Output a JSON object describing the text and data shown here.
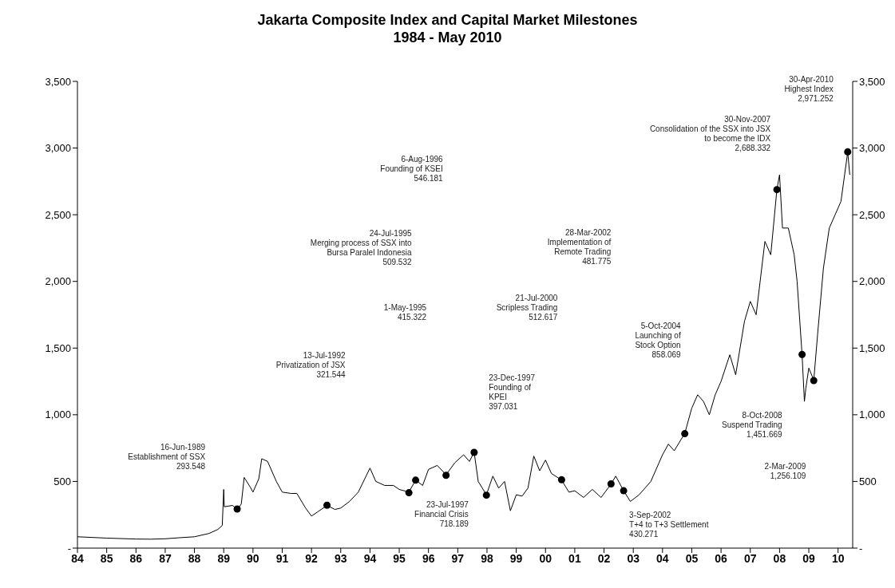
{
  "chart_data": {
    "type": "line",
    "title": "Jakarta Composite Index and Capital Market Milestones",
    "subtitle": "1984 - May 2010",
    "xlim": [
      1984,
      2010.5
    ],
    "xticks": [
      {
        "value": 1984,
        "label": "84"
      },
      {
        "value": 1985,
        "label": "85"
      },
      {
        "value": 1986,
        "label": "86"
      },
      {
        "value": 1987,
        "label": "87"
      },
      {
        "value": 1988,
        "label": "88"
      },
      {
        "value": 1989,
        "label": "89"
      },
      {
        "value": 1990,
        "label": "90"
      },
      {
        "value": 1991,
        "label": "91"
      },
      {
        "value": 1992,
        "label": "92"
      },
      {
        "value": 1993,
        "label": "93"
      },
      {
        "value": 1994,
        "label": "94"
      },
      {
        "value": 1995,
        "label": "95"
      },
      {
        "value": 1996,
        "label": "96"
      },
      {
        "value": 1997,
        "label": "97"
      },
      {
        "value": 1998,
        "label": "98"
      },
      {
        "value": 1999,
        "label": "99"
      },
      {
        "value": 2000,
        "label": "00"
      },
      {
        "value": 2001,
        "label": "01"
      },
      {
        "value": 2002,
        "label": "02"
      },
      {
        "value": 2003,
        "label": "03"
      },
      {
        "value": 2004,
        "label": "04"
      },
      {
        "value": 2005,
        "label": "05"
      },
      {
        "value": 2006,
        "label": "06"
      },
      {
        "value": 2007,
        "label": "07"
      },
      {
        "value": 2008,
        "label": "08"
      },
      {
        "value": 2009,
        "label": "09"
      },
      {
        "value": 2010,
        "label": "10"
      }
    ],
    "ylim": [
      0,
      3500
    ],
    "yticks": [
      {
        "value": 0,
        "label": "-"
      },
      {
        "value": 500,
        "label": "500"
      },
      {
        "value": 1000,
        "label": "1,000"
      },
      {
        "value": 1500,
        "label": "1,500"
      },
      {
        "value": 2000,
        "label": "2,000"
      },
      {
        "value": 2500,
        "label": "2,500"
      },
      {
        "value": 3000,
        "label": "3,000"
      },
      {
        "value": 3500,
        "label": "3,500"
      }
    ],
    "y2lim": [
      0,
      3500
    ],
    "y2ticks": [
      {
        "value": 0,
        "label": "-"
      },
      {
        "value": 500,
        "label": "500"
      },
      {
        "value": 1000,
        "label": "1,000"
      },
      {
        "value": 1500,
        "label": "1,500"
      },
      {
        "value": 2000,
        "label": "2,000"
      },
      {
        "value": 2500,
        "label": "2,500"
      },
      {
        "value": 3000,
        "label": "3,000"
      },
      {
        "value": 3500,
        "label": "3,500"
      }
    ],
    "grid": false,
    "series": [
      {
        "color": "#000000",
        "marker": "none",
        "x": [
          1984,
          1985,
          1986,
          1986.5,
          1987,
          1987.5,
          1988,
          1988.5,
          1988.8,
          1988.95,
          1989.0,
          1989.02,
          1989.3,
          1989.46,
          1989.6,
          1989.7,
          1989.9,
          1990.0,
          1990.2,
          1990.3,
          1990.5,
          1990.8,
          1991.0,
          1991.3,
          1991.5,
          1991.8,
          1992.0,
          1992.2,
          1992.53,
          1992.8,
          1993.0,
          1993.3,
          1993.6,
          1994.0,
          1994.2,
          1994.5,
          1994.8,
          1995.0,
          1995.33,
          1995.56,
          1995.8,
          1996.0,
          1996.3,
          1996.6,
          1996.9,
          1997.2,
          1997.4,
          1997.56,
          1997.7,
          1997.98,
          1998.2,
          1998.4,
          1998.6,
          1998.8,
          1999.0,
          1999.2,
          1999.4,
          1999.6,
          1999.8,
          2000.0,
          2000.2,
          2000.55,
          2000.8,
          2001.0,
          2001.3,
          2001.6,
          2001.9,
          2002.24,
          2002.4,
          2002.67,
          2002.9,
          2003.2,
          2003.6,
          2004.0,
          2004.2,
          2004.4,
          2004.76,
          2005.0,
          2005.2,
          2005.4,
          2005.6,
          2005.8,
          2006.0,
          2006.3,
          2006.5,
          2006.8,
          2007.0,
          2007.2,
          2007.5,
          2007.7,
          2007.91,
          2008.0,
          2008.1,
          2008.3,
          2008.5,
          2008.6,
          2008.77,
          2008.85,
          2008.9,
          2009.0,
          2009.17,
          2009.3,
          2009.5,
          2009.7,
          2009.9,
          2010.1,
          2010.33,
          2010.4
        ],
        "values": [
          85,
          75,
          68,
          67,
          70,
          78,
          85,
          110,
          140,
          170,
          440,
          310,
          320,
          290,
          330,
          530,
          460,
          420,
          520,
          670,
          650,
          500,
          420,
          410,
          410,
          300,
          240,
          270,
          320,
          290,
          300,
          350,
          420,
          600,
          500,
          470,
          470,
          440,
          420,
          510,
          470,
          590,
          620,
          550,
          640,
          700,
          650,
          720,
          500,
          400,
          540,
          450,
          500,
          280,
          400,
          390,
          450,
          690,
          580,
          660,
          560,
          510,
          420,
          430,
          380,
          440,
          380,
          480,
          540,
          430,
          350,
          400,
          500,
          700,
          780,
          730,
          860,
          1050,
          1150,
          1100,
          1000,
          1150,
          1250,
          1450,
          1300,
          1700,
          1850,
          1750,
          2300,
          2200,
          2690,
          2800,
          2400,
          2400,
          2200,
          2000,
          1450,
          1100,
          1200,
          1350,
          1260,
          1600,
          2100,
          2400,
          2500,
          2600,
          2970,
          2800
        ]
      },
      {
        "type": "scatter",
        "color": "#000000",
        "marker": "circle",
        "x": [
          1989.46,
          1992.53,
          1995.33,
          1995.56,
          1996.6,
          1997.56,
          1997.98,
          2000.55,
          2002.24,
          2002.67,
          2004.76,
          2007.91,
          2008.77,
          2009.17,
          2010.33
        ],
        "values": [
          293.548,
          321.544,
          415.322,
          509.532,
          546.181,
          718.189,
          397.031,
          512.617,
          481.775,
          430.271,
          858.069,
          2688.332,
          1451.669,
          1256.109,
          2971.252
        ]
      }
    ],
    "annotations": [
      "16-Jun-1989\nEstablishment of SSX\n293.548",
      "13-Jul-1992\nPrivatization of JSX\n321.544",
      "1-May-1995\n415.322",
      "24-Jul-1995\nMerging process of SSX into\nBursa Paralel Indonesia\n509.532",
      "6-Aug-1996\nFounding of KSEI\n546.181",
      "23-Jul-1997\nFinancial Crisis\n718.189",
      "23-Dec-1997\nFounding of\nKPEI\n397.031",
      "21-Jul-2000\nScripless Trading\n512.617",
      "28-Mar-2002\nImplementation of\nRemote Trading\n481.775",
      "3-Sep-2002\nT+4 to T+3 Settlement\n430.271",
      "5-Oct-2004\nLaunching of\nStock Option\n858.069",
      "30-Nov-2007\nConsolidation of the SSX into JSX\nto become the IDX\n2,688.332",
      "8-Oct-2008\nSuspend Trading\n1,451.669",
      "2-Mar-2009\n1,256.109",
      "30-Apr-2010\nHighest Index\n2,971.252"
    ]
  }
}
